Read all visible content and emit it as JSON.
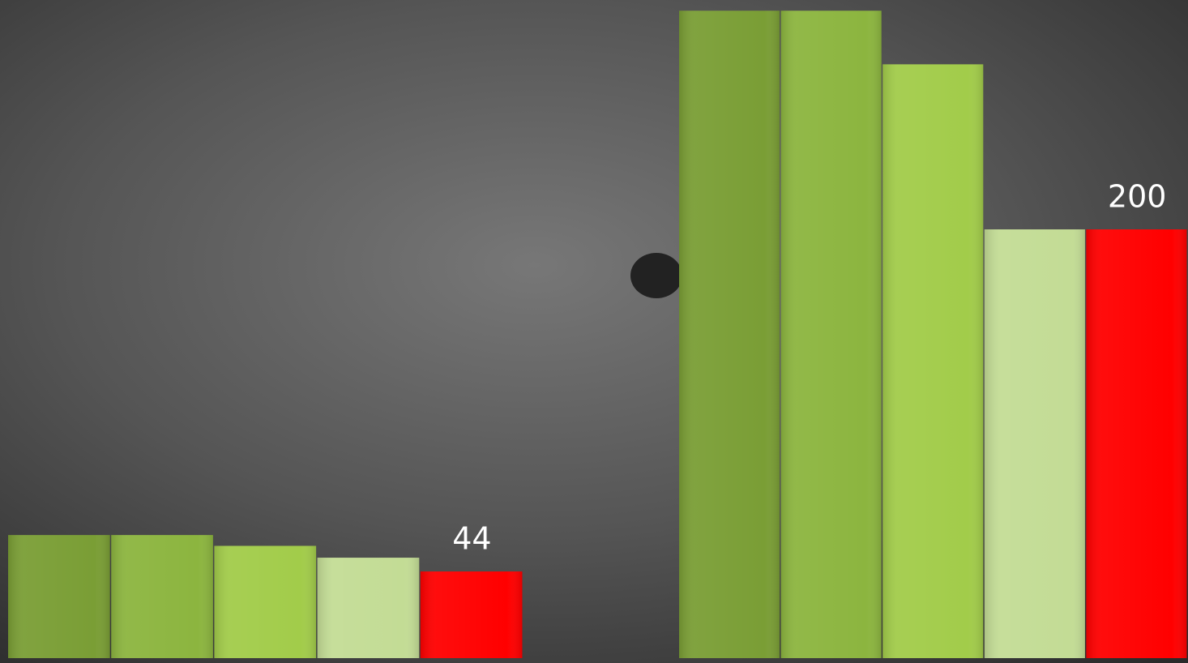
{
  "chart_data": [
    {
      "type": "bar",
      "categories": [
        null,
        null,
        null,
        null,
        null
      ],
      "values": [
        62.5,
        62.5,
        57,
        51,
        44
      ],
      "colors": [
        "#7a9e35",
        "#8cb53f",
        "#a2cc4a",
        "#c3dc95",
        "#ff0000"
      ],
      "show_value_labels": [
        false,
        false,
        false,
        false,
        true
      ],
      "ylim": [
        0,
        330
      ]
    },
    {
      "type": "bar",
      "categories": [
        null,
        null,
        null,
        null,
        null
      ],
      "values": [
        302,
        302,
        277,
        200,
        200
      ],
      "colors": [
        "#7a9e35",
        "#8cb53f",
        "#a2cc4a",
        "#c3dc95",
        "#ff0000"
      ],
      "show_value_labels": [
        false,
        false,
        false,
        false,
        true
      ],
      "ylim": [
        0,
        307
      ]
    }
  ]
}
